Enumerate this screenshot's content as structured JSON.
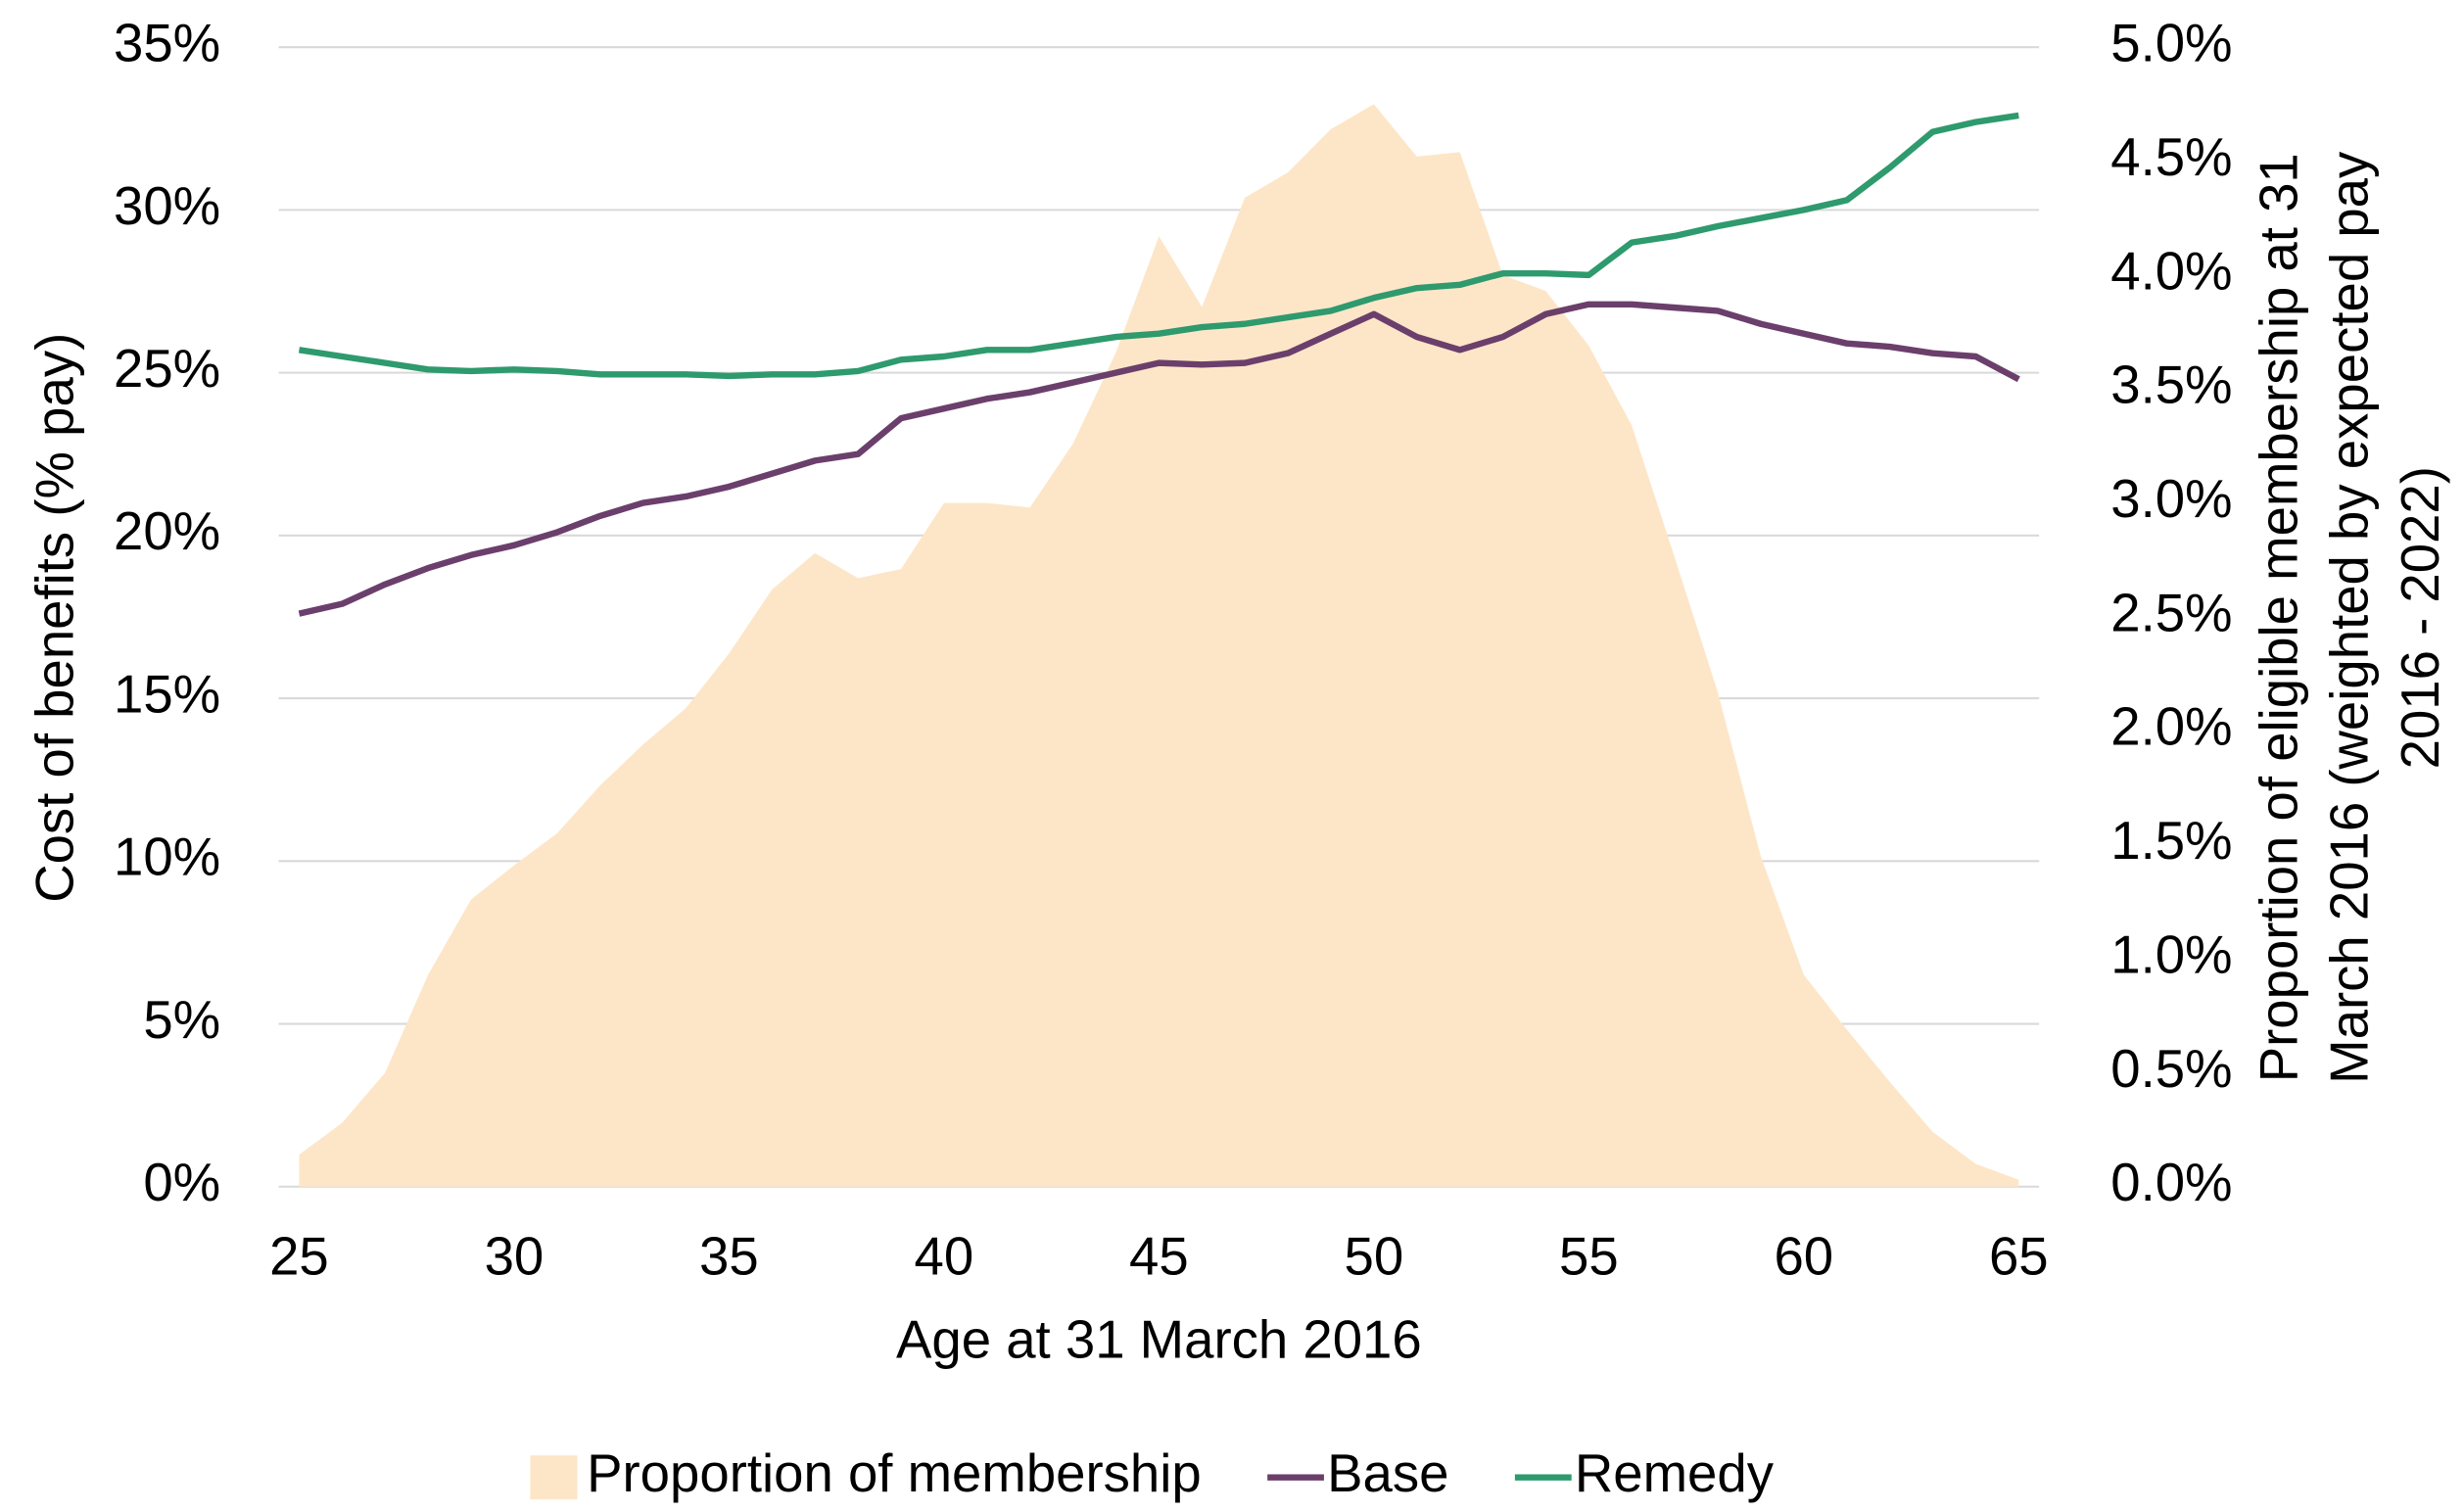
{
  "chart_data": {
    "type": "line",
    "xlabel": "Age at 31 March 2016",
    "ylabel": "Cost of benefits (% pay)",
    "y2label": [
      "Proportion of eligible membership at 31",
      "March 2016 (weighted by expected pay",
      "2016 - 2022)"
    ],
    "x": [
      25,
      26,
      27,
      28,
      29,
      30,
      31,
      32,
      33,
      34,
      35,
      36,
      37,
      38,
      39,
      40,
      41,
      42,
      43,
      44,
      45,
      46,
      47,
      48,
      49,
      50,
      51,
      52,
      53,
      54,
      55,
      56,
      57,
      58,
      59,
      60,
      61,
      62,
      63,
      64,
      65
    ],
    "xlim": [
      25,
      65
    ],
    "xticks": [
      25,
      30,
      35,
      40,
      45,
      50,
      55,
      60,
      65
    ],
    "ylim": [
      0,
      35
    ],
    "yticks": [
      {
        "value": 0,
        "label": "0%"
      },
      {
        "value": 5,
        "label": "5%"
      },
      {
        "value": 10,
        "label": "10%"
      },
      {
        "value": 15,
        "label": "15%"
      },
      {
        "value": 20,
        "label": "20%"
      },
      {
        "value": 25,
        "label": "25%"
      },
      {
        "value": 30,
        "label": "30%"
      },
      {
        "value": 35,
        "label": "35%"
      }
    ],
    "y2lim": [
      0,
      5
    ],
    "y2ticks": [
      {
        "value": 0,
        "label": "0.0%"
      },
      {
        "value": 0.5,
        "label": "0.5%"
      },
      {
        "value": 1,
        "label": "1.0%"
      },
      {
        "value": 1.5,
        "label": "1.5%"
      },
      {
        "value": 2,
        "label": "2.0%"
      },
      {
        "value": 2.5,
        "label": "2.5%"
      },
      {
        "value": 3,
        "label": "3.0%"
      },
      {
        "value": 3.5,
        "label": "3.5%"
      },
      {
        "value": 4,
        "label": "4.0%"
      },
      {
        "value": 4.5,
        "label": "4.5%"
      },
      {
        "value": 5,
        "label": "5.0%"
      }
    ],
    "grid": true,
    "legend": "bottom",
    "series": [
      {
        "name": "Proportion of membership",
        "type": "area",
        "axis": "y2",
        "color": "#fde6c8",
        "values": [
          0.14,
          0.28,
          0.5,
          0.93,
          1.26,
          1.41,
          1.55,
          1.76,
          1.94,
          2.1,
          2.34,
          2.62,
          2.78,
          2.67,
          2.71,
          3.0,
          3.0,
          2.98,
          3.26,
          3.66,
          4.17,
          3.86,
          4.34,
          4.45,
          4.64,
          4.75,
          4.52,
          4.54,
          4.0,
          3.93,
          3.69,
          3.34,
          2.76,
          2.17,
          1.45,
          0.93,
          0.69,
          0.46,
          0.24,
          0.1,
          0.03
        ]
      },
      {
        "name": "Base",
        "type": "line",
        "color": "#6b3f6b",
        "values": [
          17.6,
          17.9,
          18.5,
          19.0,
          19.4,
          19.7,
          20.1,
          20.6,
          21.0,
          21.2,
          21.5,
          21.9,
          22.3,
          22.5,
          23.6,
          23.9,
          24.2,
          24.4,
          24.7,
          25.0,
          25.3,
          25.25,
          25.3,
          25.6,
          26.2,
          26.8,
          26.1,
          25.7,
          26.1,
          26.8,
          27.1,
          27.1,
          27.0,
          26.9,
          26.5,
          26.2,
          25.9,
          25.8,
          25.6,
          25.5,
          24.8
        ]
      },
      {
        "name": "Remedy",
        "type": "line",
        "color": "#2e9a6e",
        "values": [
          25.7,
          25.5,
          25.3,
          25.1,
          25.05,
          25.1,
          25.05,
          24.95,
          24.95,
          24.95,
          24.9,
          24.95,
          24.95,
          25.05,
          25.4,
          25.5,
          25.7,
          25.7,
          25.9,
          26.1,
          26.2,
          26.4,
          26.5,
          26.7,
          26.9,
          27.3,
          27.6,
          27.7,
          28.05,
          28.05,
          28.0,
          29.0,
          29.2,
          29.5,
          29.75,
          30.0,
          30.3,
          31.3,
          32.4,
          32.7,
          32.9
        ]
      }
    ]
  }
}
